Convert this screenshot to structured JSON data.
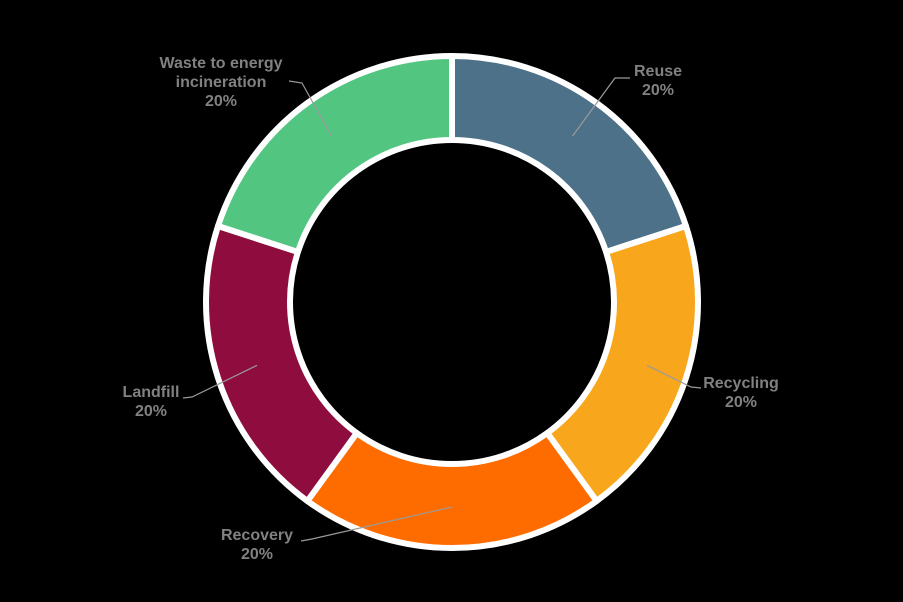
{
  "chart_data": {
    "type": "pie",
    "subtype": "donut",
    "title": "",
    "categories": [
      "Reuse",
      "Recycling",
      "Recovery",
      "Landfill",
      "Waste to energy incineration"
    ],
    "values": [
      20,
      20,
      20,
      20,
      20
    ],
    "value_unit": "%",
    "slices": [
      {
        "label": "Reuse",
        "value": 20,
        "percent": "20%",
        "color": "#4c7189",
        "label_lines": [
          "Reuse",
          "20%"
        ]
      },
      {
        "label": "Recycling",
        "value": 20,
        "percent": "20%",
        "color": "#f8a71d",
        "label_lines": [
          "Recycling",
          "20%"
        ]
      },
      {
        "label": "Recovery",
        "value": 20,
        "percent": "20%",
        "color": "#fe6c00",
        "label_lines": [
          "Recovery",
          "20%"
        ]
      },
      {
        "label": "Landfill",
        "value": 20,
        "percent": "20%",
        "color": "#8f0c3e",
        "label_lines": [
          "Landfill",
          "20%"
        ]
      },
      {
        "label": "Waste to energy incineration",
        "value": 20,
        "percent": "20%",
        "color": "#52c581",
        "label_lines": [
          "Waste to energy",
          "incineration",
          "20%"
        ]
      }
    ],
    "hole_ratio": 0.66,
    "start_angle_deg": 0,
    "direction": "clockwise",
    "slice_border_color": "#ffffff",
    "label_color": "#818181",
    "leader_line_color": "#9a9a9a",
    "background_color": "#000000",
    "legend": "none",
    "grid": false
  }
}
